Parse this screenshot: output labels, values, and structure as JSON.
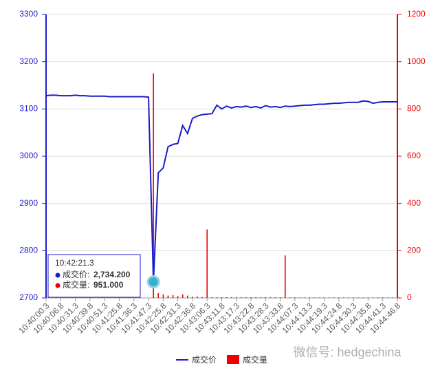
{
  "chart_data": {
    "type": "line-bar",
    "categories": [
      "10:40:00.3",
      null,
      null,
      "10:40:06.8",
      null,
      null,
      "10:40:31.3",
      null,
      null,
      "10:40:39.8",
      null,
      null,
      "10:40:51.3",
      null,
      null,
      "10:41:25.8",
      null,
      null,
      "10:41:36.3",
      null,
      null,
      "10:41:47.3",
      null,
      null,
      "10:42:25.8",
      null,
      null,
      "10:42:31.3",
      null,
      null,
      "10:42:36.8",
      null,
      null,
      "10:43:06.3",
      null,
      null,
      "10:43:11.8",
      null,
      null,
      "10:43:17.3",
      null,
      null,
      "10:43:22.8",
      null,
      null,
      "10:43:28.3",
      null,
      null,
      "10:43:33.8",
      null,
      null,
      "10:44:07.3",
      null,
      null,
      "10:44:13.3",
      null,
      null,
      "10:44:19.3",
      null,
      null,
      "10:44:24.8",
      null,
      null,
      "10:44:30.3",
      null,
      null,
      "10:44:35.8",
      null,
      null,
      "10:44:41.3",
      null,
      null,
      "10:44:46.8"
    ],
    "series": [
      {
        "name": "成交价",
        "color": "#1a1acc",
        "kind": "line",
        "values": [
          3128,
          3129,
          3129,
          3128,
          3128,
          3128,
          3129,
          3128,
          3128,
          3127,
          3127,
          3127,
          3127,
          3126,
          3126,
          3126,
          3126,
          3126,
          3126,
          3126,
          3126,
          3125,
          2734,
          2965,
          2975,
          3020,
          3025,
          3027,
          3065,
          3048,
          3080,
          3085,
          3088,
          3089,
          3090,
          3108,
          3100,
          3106,
          3102,
          3105,
          3104,
          3106,
          3103,
          3105,
          3102,
          3107,
          3104,
          3105,
          3103,
          3106,
          3105,
          3106,
          3107,
          3108,
          3108,
          3109,
          3110,
          3110,
          3111,
          3112,
          3112,
          3113,
          3114,
          3114,
          3114,
          3117,
          3116,
          3112,
          3114,
          3115,
          3115,
          3115,
          3115
        ]
      },
      {
        "name": "成交量",
        "color": "#ee0000",
        "kind": "bar",
        "axis": "y2",
        "values": [
          0,
          0,
          0,
          0,
          0,
          0,
          0,
          0,
          0,
          0,
          0,
          0,
          0,
          0,
          0,
          0,
          0,
          0,
          0,
          0,
          0,
          0,
          951,
          20,
          15,
          10,
          12,
          8,
          15,
          10,
          5,
          6,
          4,
          290,
          3,
          3,
          3,
          3,
          3,
          3,
          3,
          3,
          3,
          3,
          3,
          3,
          3,
          3,
          3,
          180,
          2,
          2,
          2,
          2,
          2,
          2,
          2,
          2,
          2,
          2,
          2,
          2,
          2,
          2,
          2,
          2,
          2,
          2,
          2,
          2,
          2,
          2,
          2
        ]
      }
    ],
    "ylim": [
      2700,
      3300
    ],
    "yticks": [
      2700,
      2800,
      2900,
      3000,
      3100,
      3200,
      3300
    ],
    "y2lim": [
      0,
      1200
    ],
    "y2ticks": [
      0,
      200,
      400,
      600,
      800,
      1000,
      1200
    ],
    "grid": true,
    "tooltip": {
      "title": "10:42:21.3",
      "items": [
        {
          "label": "成交价:",
          "value": "2,734.200"
        },
        {
          "label": "成交量:",
          "value": "951.000"
        }
      ]
    },
    "watermark": "微信号: hedgechina"
  }
}
